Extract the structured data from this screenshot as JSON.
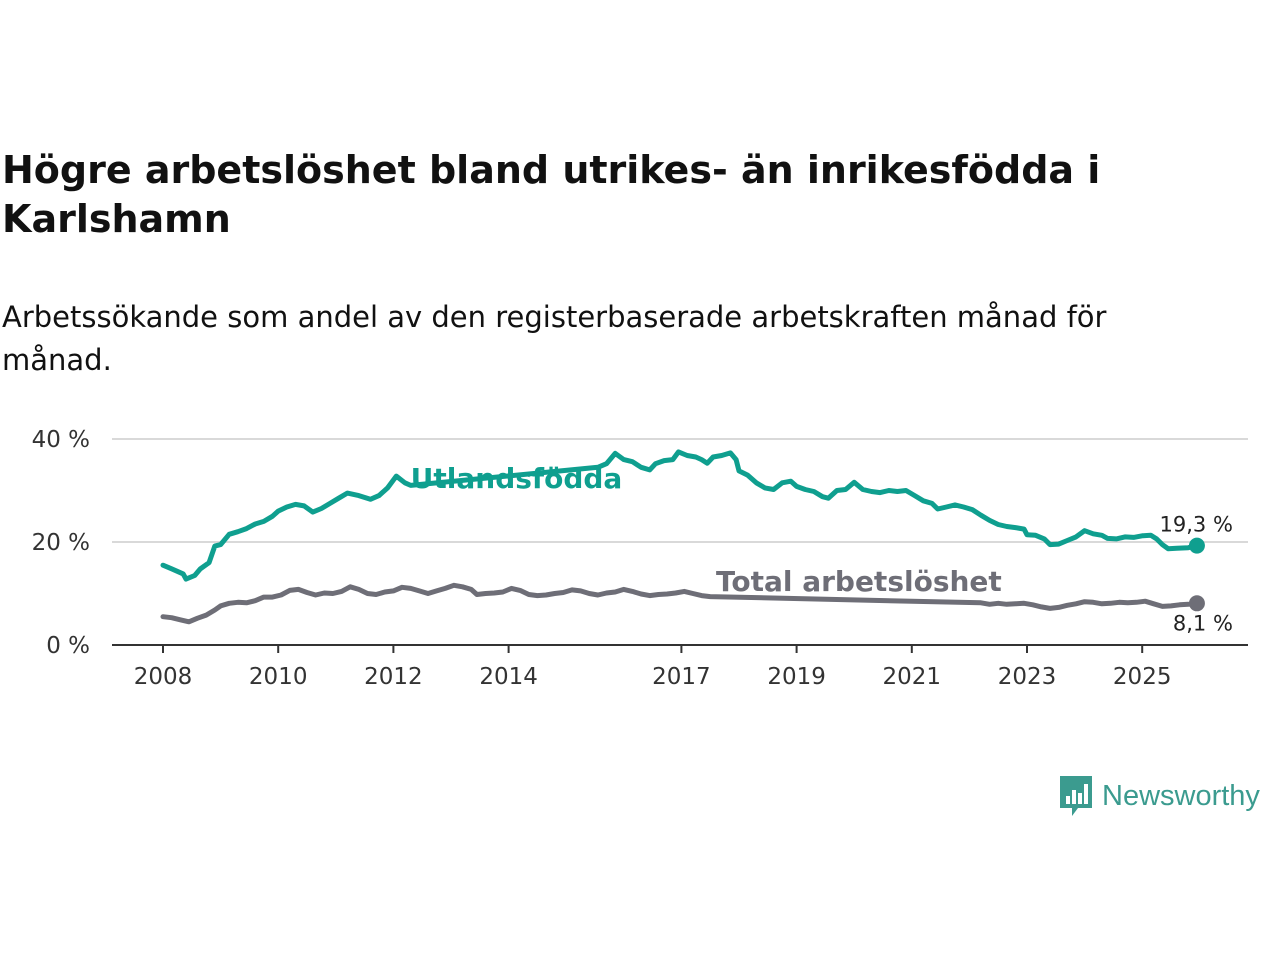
{
  "header": {
    "title": "Högre arbetslöshet bland utrikes- än inrikesfödda i Karlshamn",
    "subtitle": "Arbetssökande som andel av den registerbaserade arbetskraften månad för månad."
  },
  "brand": {
    "name": "Newsworthy",
    "icon": "newsworthy-logo-icon",
    "color": "#3b9b8f"
  },
  "chart_data": {
    "type": "line",
    "title": "Högre arbetslöshet bland utrikes- än inrikesfödda i Karlshamn",
    "xlabel": "",
    "ylabel": "",
    "xlim": [
      2007.9,
      2026.9
    ],
    "ylim": [
      0,
      40
    ],
    "grid": true,
    "y_ticks": [
      {
        "value": 0,
        "label": "0 %"
      },
      {
        "value": 20,
        "label": "20 %"
      },
      {
        "value": 40,
        "label": "40 %"
      }
    ],
    "x_ticks": [
      {
        "value": 2008,
        "label": "2008"
      },
      {
        "value": 2010,
        "label": "2010"
      },
      {
        "value": 2012,
        "label": "2012"
      },
      {
        "value": 2014,
        "label": "2014"
      },
      {
        "value": 2017,
        "label": "2017"
      },
      {
        "value": 2019,
        "label": "2019"
      },
      {
        "value": 2021,
        "label": "2021"
      },
      {
        "value": 2023,
        "label": "2023"
      },
      {
        "value": 2025,
        "label": "2025"
      }
    ],
    "series": [
      {
        "name": "Utlandsfödda",
        "color": "#0f9f8f",
        "label_at": [
          2012.3,
          30.5
        ],
        "end_label": "19,3 %",
        "points": [
          [
            2008.0,
            15.5
          ],
          [
            2008.15,
            14.8
          ],
          [
            2008.35,
            13.8
          ],
          [
            2008.4,
            12.8
          ],
          [
            2008.55,
            13.5
          ],
          [
            2008.65,
            14.8
          ],
          [
            2008.8,
            16.0
          ],
          [
            2008.9,
            19.2
          ],
          [
            2009.0,
            19.5
          ],
          [
            2009.15,
            21.5
          ],
          [
            2009.3,
            22.0
          ],
          [
            2009.45,
            22.6
          ],
          [
            2009.6,
            23.5
          ],
          [
            2009.75,
            24.0
          ],
          [
            2009.9,
            25.0
          ],
          [
            2010.0,
            26.0
          ],
          [
            2010.15,
            26.8
          ],
          [
            2010.3,
            27.3
          ],
          [
            2010.45,
            27.0
          ],
          [
            2010.6,
            25.8
          ],
          [
            2010.75,
            26.5
          ],
          [
            2010.9,
            27.5
          ],
          [
            2011.05,
            28.5
          ],
          [
            2011.2,
            29.5
          ],
          [
            2011.4,
            29.0
          ],
          [
            2011.6,
            28.3
          ],
          [
            2011.75,
            29.0
          ],
          [
            2011.9,
            30.5
          ],
          [
            2012.05,
            32.8
          ],
          [
            2012.2,
            31.5
          ],
          [
            2012.3,
            31.0
          ],
          [
            2015.55,
            34.5
          ],
          [
            2015.7,
            35.2
          ],
          [
            2015.85,
            37.2
          ],
          [
            2016.0,
            36.0
          ],
          [
            2016.15,
            35.6
          ],
          [
            2016.3,
            34.5
          ],
          [
            2016.45,
            34.0
          ],
          [
            2016.55,
            35.2
          ],
          [
            2016.7,
            35.8
          ],
          [
            2016.85,
            36.0
          ],
          [
            2016.95,
            37.5
          ],
          [
            2017.1,
            36.8
          ],
          [
            2017.25,
            36.5
          ],
          [
            2017.35,
            36.0
          ],
          [
            2017.45,
            35.3
          ],
          [
            2017.55,
            36.5
          ],
          [
            2017.7,
            36.8
          ],
          [
            2017.85,
            37.3
          ],
          [
            2017.95,
            36.0
          ],
          [
            2018.0,
            33.8
          ],
          [
            2018.15,
            33.0
          ],
          [
            2018.3,
            31.5
          ],
          [
            2018.45,
            30.5
          ],
          [
            2018.6,
            30.2
          ],
          [
            2018.75,
            31.5
          ],
          [
            2018.9,
            31.8
          ],
          [
            2019.0,
            30.8
          ],
          [
            2019.15,
            30.2
          ],
          [
            2019.3,
            29.8
          ],
          [
            2019.45,
            28.8
          ],
          [
            2019.55,
            28.5
          ],
          [
            2019.7,
            30.0
          ],
          [
            2019.85,
            30.2
          ],
          [
            2020.0,
            31.6
          ],
          [
            2020.15,
            30.2
          ],
          [
            2020.3,
            29.8
          ],
          [
            2020.45,
            29.6
          ],
          [
            2020.6,
            30.0
          ],
          [
            2020.75,
            29.8
          ],
          [
            2020.9,
            30.0
          ],
          [
            2021.05,
            29.0
          ],
          [
            2021.2,
            28.0
          ],
          [
            2021.35,
            27.5
          ],
          [
            2021.45,
            26.4
          ],
          [
            2021.6,
            26.8
          ],
          [
            2021.75,
            27.2
          ],
          [
            2021.9,
            26.8
          ],
          [
            2022.05,
            26.3
          ],
          [
            2022.2,
            25.2
          ],
          [
            2022.35,
            24.2
          ],
          [
            2022.5,
            23.4
          ],
          [
            2022.65,
            23.0
          ],
          [
            2022.8,
            22.8
          ],
          [
            2022.95,
            22.5
          ],
          [
            2023.0,
            21.4
          ],
          [
            2023.15,
            21.3
          ],
          [
            2023.3,
            20.6
          ],
          [
            2023.4,
            19.5
          ],
          [
            2023.55,
            19.6
          ],
          [
            2023.7,
            20.3
          ],
          [
            2023.85,
            21.0
          ],
          [
            2024.0,
            22.2
          ],
          [
            2024.15,
            21.6
          ],
          [
            2024.3,
            21.3
          ],
          [
            2024.4,
            20.7
          ],
          [
            2024.55,
            20.6
          ],
          [
            2024.7,
            21.0
          ],
          [
            2024.85,
            20.9
          ],
          [
            2025.0,
            21.2
          ],
          [
            2025.15,
            21.3
          ],
          [
            2025.25,
            20.6
          ],
          [
            2025.35,
            19.5
          ],
          [
            2025.45,
            18.7
          ],
          [
            2025.6,
            18.8
          ],
          [
            2025.8,
            18.9
          ],
          [
            2025.95,
            19.3
          ]
        ]
      },
      {
        "name": "Total arbetslöshet",
        "color": "#6e6e77",
        "label_at": [
          2017.6,
          10.5
        ],
        "end_label": "8,1 %",
        "points": [
          [
            2008.0,
            5.5
          ],
          [
            2008.15,
            5.3
          ],
          [
            2008.3,
            4.9
          ],
          [
            2008.45,
            4.5
          ],
          [
            2008.6,
            5.2
          ],
          [
            2008.75,
            5.8
          ],
          [
            2008.9,
            6.8
          ],
          [
            2009.0,
            7.6
          ],
          [
            2009.15,
            8.1
          ],
          [
            2009.3,
            8.3
          ],
          [
            2009.45,
            8.2
          ],
          [
            2009.6,
            8.6
          ],
          [
            2009.75,
            9.3
          ],
          [
            2009.9,
            9.3
          ],
          [
            2010.05,
            9.7
          ],
          [
            2010.2,
            10.6
          ],
          [
            2010.35,
            10.8
          ],
          [
            2010.5,
            10.2
          ],
          [
            2010.65,
            9.7
          ],
          [
            2010.8,
            10.1
          ],
          [
            2010.95,
            10.0
          ],
          [
            2011.1,
            10.4
          ],
          [
            2011.25,
            11.3
          ],
          [
            2011.4,
            10.8
          ],
          [
            2011.55,
            10.0
          ],
          [
            2011.7,
            9.8
          ],
          [
            2011.85,
            10.3
          ],
          [
            2012.0,
            10.5
          ],
          [
            2012.15,
            11.2
          ],
          [
            2012.3,
            11.0
          ],
          [
            2012.45,
            10.5
          ],
          [
            2012.6,
            10.0
          ],
          [
            2012.75,
            10.5
          ],
          [
            2012.9,
            11.0
          ],
          [
            2013.05,
            11.6
          ],
          [
            2013.2,
            11.3
          ],
          [
            2013.35,
            10.8
          ],
          [
            2013.45,
            9.8
          ],
          [
            2013.6,
            10.0
          ],
          [
            2013.75,
            10.1
          ],
          [
            2013.9,
            10.3
          ],
          [
            2014.05,
            11.0
          ],
          [
            2014.2,
            10.6
          ],
          [
            2014.35,
            9.8
          ],
          [
            2014.5,
            9.6
          ],
          [
            2014.65,
            9.7
          ],
          [
            2014.8,
            10.0
          ],
          [
            2014.95,
            10.2
          ],
          [
            2015.1,
            10.7
          ],
          [
            2015.25,
            10.5
          ],
          [
            2015.4,
            10.0
          ],
          [
            2015.55,
            9.7
          ],
          [
            2015.7,
            10.1
          ],
          [
            2015.85,
            10.3
          ],
          [
            2016.0,
            10.8
          ],
          [
            2016.15,
            10.4
          ],
          [
            2016.3,
            9.9
          ],
          [
            2016.45,
            9.6
          ],
          [
            2016.6,
            9.8
          ],
          [
            2016.75,
            9.9
          ],
          [
            2016.9,
            10.1
          ],
          [
            2017.05,
            10.4
          ],
          [
            2017.2,
            10.0
          ],
          [
            2017.35,
            9.6
          ],
          [
            2017.5,
            9.4
          ],
          [
            2022.2,
            8.2
          ],
          [
            2022.35,
            7.9
          ],
          [
            2022.5,
            8.1
          ],
          [
            2022.65,
            7.9
          ],
          [
            2022.8,
            8.0
          ],
          [
            2022.95,
            8.1
          ],
          [
            2023.1,
            7.8
          ],
          [
            2023.25,
            7.4
          ],
          [
            2023.4,
            7.1
          ],
          [
            2023.55,
            7.3
          ],
          [
            2023.7,
            7.7
          ],
          [
            2023.85,
            8.0
          ],
          [
            2024.0,
            8.4
          ],
          [
            2024.15,
            8.3
          ],
          [
            2024.3,
            8.0
          ],
          [
            2024.45,
            8.1
          ],
          [
            2024.6,
            8.3
          ],
          [
            2024.75,
            8.2
          ],
          [
            2024.9,
            8.3
          ],
          [
            2025.05,
            8.5
          ],
          [
            2025.2,
            8.0
          ],
          [
            2025.35,
            7.5
          ],
          [
            2025.5,
            7.6
          ],
          [
            2025.65,
            7.8
          ],
          [
            2025.8,
            7.9
          ],
          [
            2025.95,
            8.1
          ]
        ]
      }
    ]
  }
}
